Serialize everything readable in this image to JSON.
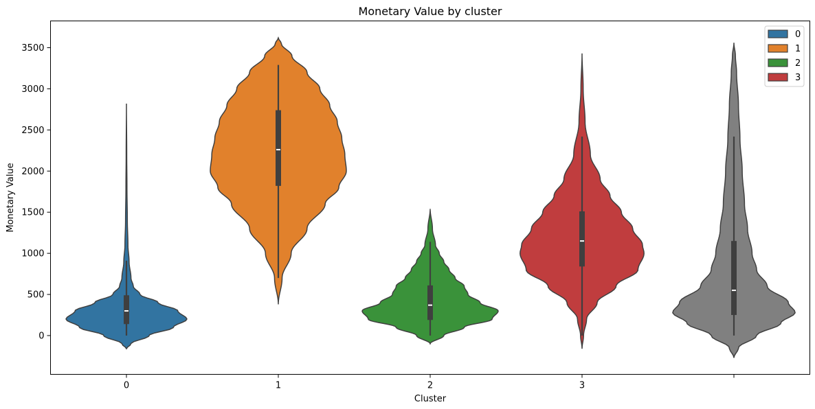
{
  "chart_data": {
    "type": "violin",
    "title": "Monetary Value by cluster",
    "xlabel": "Cluster",
    "ylabel": "Monetary Value",
    "categories": [
      "0",
      "1",
      "2",
      "3",
      ""
    ],
    "ylim": [
      -470,
      3950
    ],
    "yticks": [
      0,
      500,
      1000,
      1500,
      2000,
      2500,
      3000,
      3500
    ],
    "legend": {
      "position": "top-right",
      "entries": [
        {
          "label": "0",
          "color": "#3274a1"
        },
        {
          "label": "1",
          "color": "#e1812c"
        },
        {
          "label": "2",
          "color": "#3a923a"
        },
        {
          "label": "3",
          "color": "#c03d3e"
        }
      ]
    },
    "series": [
      {
        "category": "0",
        "color": "#3274a1",
        "min": 0,
        "q1": 140,
        "median": 300,
        "q3": 490,
        "max": 910,
        "kde_min": -160,
        "kde_max": 2820,
        "density": [
          [
            -160,
            0.0
          ],
          [
            -100,
            0.06
          ],
          [
            0,
            0.3
          ],
          [
            100,
            0.62
          ],
          [
            200,
            0.8
          ],
          [
            300,
            0.68
          ],
          [
            400,
            0.42
          ],
          [
            500,
            0.18
          ],
          [
            600,
            0.09
          ],
          [
            700,
            0.06
          ],
          [
            900,
            0.035
          ],
          [
            1100,
            0.02
          ],
          [
            1400,
            0.012
          ],
          [
            1800,
            0.007
          ],
          [
            2200,
            0.004
          ],
          [
            2820,
            0.0
          ]
        ]
      },
      {
        "category": "1",
        "color": "#e1812c",
        "min": 700,
        "q1": 1820,
        "median": 2260,
        "q3": 2740,
        "max": 3290,
        "kde_min": 380,
        "kde_max": 3620,
        "density": [
          [
            380,
            0.0
          ],
          [
            700,
            0.05
          ],
          [
            1000,
            0.17
          ],
          [
            1300,
            0.38
          ],
          [
            1600,
            0.62
          ],
          [
            1800,
            0.8
          ],
          [
            2000,
            0.9
          ],
          [
            2200,
            0.88
          ],
          [
            2400,
            0.84
          ],
          [
            2600,
            0.78
          ],
          [
            2800,
            0.68
          ],
          [
            3000,
            0.55
          ],
          [
            3200,
            0.38
          ],
          [
            3400,
            0.18
          ],
          [
            3550,
            0.04
          ],
          [
            3620,
            0.0
          ]
        ]
      },
      {
        "category": "2",
        "color": "#3a923a",
        "min": 0,
        "q1": 190,
        "median": 370,
        "q3": 610,
        "max": 1140,
        "kde_min": -100,
        "kde_max": 1540,
        "density": [
          [
            -100,
            0.0
          ],
          [
            0,
            0.18
          ],
          [
            100,
            0.45
          ],
          [
            200,
            0.82
          ],
          [
            300,
            0.9
          ],
          [
            400,
            0.66
          ],
          [
            500,
            0.5
          ],
          [
            600,
            0.45
          ],
          [
            700,
            0.33
          ],
          [
            800,
            0.25
          ],
          [
            900,
            0.18
          ],
          [
            1000,
            0.12
          ],
          [
            1100,
            0.07
          ],
          [
            1300,
            0.03
          ],
          [
            1540,
            0.0
          ]
        ]
      },
      {
        "category": "3",
        "color": "#c03d3e",
        "min": 0,
        "q1": 840,
        "median": 1150,
        "q3": 1510,
        "max": 2420,
        "kde_min": -160,
        "kde_max": 3430,
        "density": [
          [
            -160,
            0.0
          ],
          [
            0,
            0.02
          ],
          [
            200,
            0.06
          ],
          [
            400,
            0.2
          ],
          [
            600,
            0.45
          ],
          [
            800,
            0.74
          ],
          [
            1000,
            0.82
          ],
          [
            1100,
            0.8
          ],
          [
            1300,
            0.67
          ],
          [
            1500,
            0.52
          ],
          [
            1700,
            0.37
          ],
          [
            1900,
            0.24
          ],
          [
            2200,
            0.11
          ],
          [
            2600,
            0.04
          ],
          [
            3000,
            0.015
          ],
          [
            3430,
            0.0
          ]
        ]
      },
      {
        "category": "",
        "color": "#808080",
        "min": 0,
        "q1": 250,
        "median": 550,
        "q3": 1150,
        "max": 2420,
        "kde_min": -270,
        "kde_max": 3560,
        "density": [
          [
            -270,
            0.0
          ],
          [
            -150,
            0.06
          ],
          [
            0,
            0.3
          ],
          [
            150,
            0.62
          ],
          [
            280,
            0.81
          ],
          [
            400,
            0.72
          ],
          [
            600,
            0.44
          ],
          [
            800,
            0.3
          ],
          [
            1000,
            0.24
          ],
          [
            1300,
            0.18
          ],
          [
            1600,
            0.14
          ],
          [
            2000,
            0.11
          ],
          [
            2400,
            0.08
          ],
          [
            2800,
            0.06
          ],
          [
            3200,
            0.035
          ],
          [
            3400,
            0.02
          ],
          [
            3560,
            0.0
          ]
        ]
      }
    ]
  }
}
